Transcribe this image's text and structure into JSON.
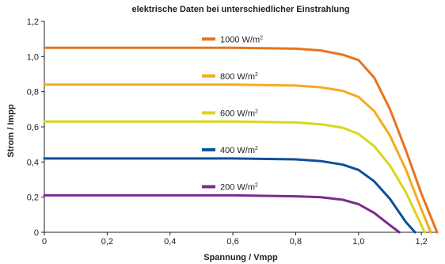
{
  "chart_data": {
    "type": "line",
    "title": "elektrische Daten bei unterschiedlicher Einstrahlung",
    "xlabel": "Spannung / Vmpp",
    "ylabel": "Strom / Impp",
    "xlim": [
      0,
      1.25
    ],
    "ylim": [
      0,
      1.2
    ],
    "x_ticks": [
      "0",
      "0,2",
      "0,4",
      "0,6",
      "0,8",
      "1,0",
      "1,2"
    ],
    "y_ticks": [
      "0",
      "0,2",
      "0,4",
      "0,6",
      "0,8",
      "1,0",
      "1,2"
    ],
    "grid": false,
    "legend": "inline",
    "series": [
      {
        "name": "1000 W/m²",
        "name_base": "1000 W/m",
        "name_sup": "2",
        "color": "#e8731e",
        "x": [
          0,
          0.2,
          0.4,
          0.6,
          0.8,
          0.88,
          0.95,
          1.0,
          1.05,
          1.1,
          1.15,
          1.2,
          1.25
        ],
        "y": [
          1.05,
          1.05,
          1.05,
          1.05,
          1.045,
          1.035,
          1.01,
          0.98,
          0.88,
          0.7,
          0.47,
          0.22,
          0.0
        ]
      },
      {
        "name": "800 W/m²",
        "name_base": "800 W/m",
        "name_sup": "2",
        "color": "#f5ab1d",
        "x": [
          0,
          0.2,
          0.4,
          0.6,
          0.8,
          0.88,
          0.95,
          1.0,
          1.05,
          1.1,
          1.15,
          1.2,
          1.23
        ],
        "y": [
          0.84,
          0.84,
          0.84,
          0.84,
          0.835,
          0.825,
          0.805,
          0.77,
          0.69,
          0.55,
          0.36,
          0.13,
          0.0
        ]
      },
      {
        "name": "600 W/m²",
        "name_base": "600 W/m",
        "name_sup": "2",
        "color": "#d9d71c",
        "x": [
          0,
          0.2,
          0.4,
          0.6,
          0.8,
          0.88,
          0.95,
          1.0,
          1.05,
          1.1,
          1.15,
          1.2,
          1.21
        ],
        "y": [
          0.63,
          0.63,
          0.63,
          0.63,
          0.625,
          0.615,
          0.595,
          0.56,
          0.49,
          0.38,
          0.23,
          0.04,
          0.0
        ]
      },
      {
        "name": "400 W/m²",
        "name_base": "400 W/m",
        "name_sup": "2",
        "color": "#0e4f9b",
        "x": [
          0,
          0.2,
          0.4,
          0.6,
          0.8,
          0.88,
          0.95,
          1.0,
          1.05,
          1.1,
          1.15,
          1.18
        ],
        "y": [
          0.42,
          0.42,
          0.42,
          0.42,
          0.415,
          0.405,
          0.385,
          0.355,
          0.29,
          0.19,
          0.06,
          0.0
        ]
      },
      {
        "name": "200 W/m²",
        "name_base": "200 W/m",
        "name_sup": "2",
        "color": "#7b2b8f",
        "x": [
          0,
          0.2,
          0.4,
          0.6,
          0.8,
          0.88,
          0.95,
          1.0,
          1.05,
          1.1,
          1.13
        ],
        "y": [
          0.21,
          0.21,
          0.21,
          0.21,
          0.205,
          0.2,
          0.185,
          0.16,
          0.11,
          0.04,
          0.0
        ]
      }
    ]
  }
}
